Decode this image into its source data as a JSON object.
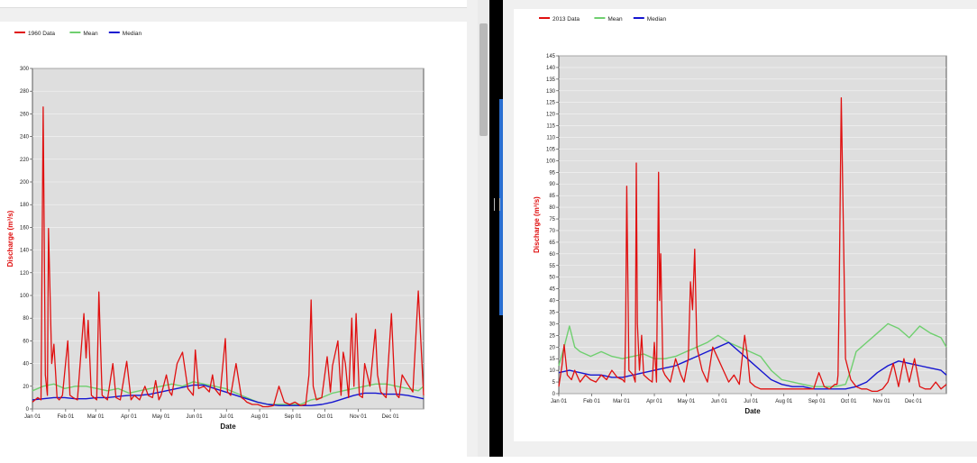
{
  "chart_data": [
    {
      "type": "line",
      "xlabel": "Date",
      "ylabel": "Discharge (m³/s)",
      "ylim": [
        0,
        300
      ],
      "yticks": [
        0,
        20,
        40,
        60,
        80,
        100,
        120,
        140,
        160,
        180,
        200,
        220,
        240,
        260,
        280,
        300
      ],
      "xtick_labels": [
        "Jan 01",
        "Feb 01",
        "Mar 01",
        "Apr 01",
        "May 01",
        "Jun 01",
        "Jul 01",
        "Aug 01",
        "Sep 01",
        "Oct 01",
        "Nov 01",
        "Dec 01"
      ],
      "x_unit": "day of year",
      "legend_position": "top-left",
      "grid": true,
      "series": [
        {
          "name": "1960 Data",
          "color": "#e01010",
          "x": [
            0,
            5,
            8,
            10,
            12,
            14,
            15,
            18,
            20,
            23,
            25,
            28,
            33,
            35,
            38,
            42,
            48,
            50,
            52,
            55,
            60,
            62,
            65,
            70,
            75,
            78,
            82,
            88,
            92,
            95,
            100,
            105,
            108,
            112,
            115,
            118,
            120,
            125,
            128,
            130,
            135,
            140,
            145,
            150,
            152,
            155,
            160,
            165,
            168,
            170,
            175,
            180,
            182,
            185,
            190,
            195,
            198,
            200,
            205,
            210,
            213,
            215,
            220,
            225,
            230,
            235,
            240,
            245,
            250,
            255,
            258,
            260,
            262,
            265,
            270,
            275,
            278,
            280,
            285,
            288,
            290,
            292,
            295,
            298,
            300,
            302,
            305,
            308,
            310,
            315,
            320,
            322,
            325,
            330,
            335,
            338,
            340,
            342,
            345,
            350,
            355,
            360,
            365
          ],
          "y": [
            6,
            10,
            8,
            266,
            30,
            12,
            159,
            40,
            57,
            10,
            8,
            12,
            60,
            12,
            10,
            8,
            84,
            45,
            78,
            12,
            8,
            103,
            12,
            8,
            40,
            10,
            8,
            42,
            8,
            12,
            8,
            20,
            12,
            10,
            25,
            8,
            12,
            30,
            15,
            12,
            40,
            50,
            18,
            12,
            52,
            18,
            20,
            15,
            30,
            18,
            12,
            62,
            15,
            12,
            40,
            10,
            8,
            6,
            4,
            4,
            3,
            2,
            2,
            3,
            20,
            6,
            4,
            6,
            3,
            4,
            30,
            96,
            20,
            8,
            10,
            46,
            15,
            38,
            60,
            12,
            50,
            40,
            10,
            80,
            20,
            84,
            12,
            10,
            40,
            20,
            70,
            30,
            15,
            10,
            84,
            20,
            12,
            10,
            30,
            22,
            15,
            104,
            12
          ]
        },
        {
          "name": "Mean",
          "color": "#6fcf6f",
          "x": [
            0,
            10,
            20,
            30,
            40,
            50,
            60,
            70,
            80,
            90,
            100,
            110,
            120,
            130,
            140,
            150,
            160,
            170,
            180,
            190,
            200,
            210,
            220,
            230,
            240,
            250,
            260,
            270,
            280,
            290,
            300,
            310,
            320,
            330,
            340,
            350,
            360,
            365
          ],
          "y": [
            16,
            20,
            22,
            18,
            20,
            20,
            18,
            16,
            18,
            14,
            16,
            18,
            20,
            22,
            20,
            24,
            22,
            20,
            18,
            14,
            10,
            6,
            4,
            4,
            4,
            4,
            8,
            10,
            14,
            16,
            18,
            20,
            22,
            22,
            20,
            18,
            16,
            20
          ]
        },
        {
          "name": "Median",
          "color": "#1515d0",
          "x": [
            0,
            10,
            20,
            30,
            40,
            50,
            60,
            70,
            80,
            90,
            100,
            110,
            120,
            130,
            140,
            150,
            160,
            170,
            180,
            190,
            200,
            210,
            220,
            230,
            240,
            250,
            260,
            270,
            280,
            290,
            300,
            310,
            320,
            330,
            340,
            350,
            360,
            365
          ],
          "y": [
            8,
            9,
            10,
            10,
            9,
            9,
            10,
            10,
            11,
            12,
            12,
            13,
            15,
            17,
            19,
            21,
            21,
            18,
            15,
            12,
            9,
            6,
            4,
            3,
            3,
            3,
            3,
            4,
            6,
            9,
            12,
            14,
            14,
            13,
            13,
            12,
            10,
            9
          ]
        }
      ]
    },
    {
      "type": "line",
      "xlabel": "Date",
      "ylabel": "Discharge (m³/s)",
      "ylim": [
        0,
        145
      ],
      "yticks": [
        0,
        5,
        10,
        15,
        20,
        25,
        30,
        35,
        40,
        45,
        50,
        55,
        60,
        65,
        70,
        75,
        80,
        85,
        90,
        95,
        100,
        105,
        110,
        115,
        120,
        125,
        130,
        135,
        140,
        145
      ],
      "xtick_labels": [
        "Jan 01",
        "Feb 01",
        "Mar 01",
        "Apr 01",
        "May 01",
        "Jun 01",
        "Jul 01",
        "Aug 01",
        "Sep 01",
        "Oct 01",
        "Nov 01",
        "Dec 01"
      ],
      "x_unit": "day of year",
      "legend_position": "top-left",
      "grid": true,
      "series": [
        {
          "name": "2013 Data",
          "color": "#e01010",
          "x": [
            0,
            3,
            5,
            8,
            12,
            15,
            18,
            20,
            25,
            30,
            35,
            40,
            45,
            50,
            55,
            60,
            62,
            63,
            64,
            66,
            70,
            72,
            73,
            74,
            76,
            78,
            80,
            85,
            88,
            90,
            92,
            94,
            95,
            96,
            98,
            100,
            105,
            110,
            115,
            118,
            120,
            122,
            124,
            126,
            128,
            130,
            135,
            140,
            145,
            150,
            155,
            160,
            165,
            170,
            175,
            178,
            180,
            185,
            190,
            195,
            200,
            205,
            210,
            220,
            230,
            240,
            245,
            250,
            255,
            260,
            262,
            263,
            264,
            266,
            270,
            275,
            280,
            285,
            290,
            295,
            300,
            305,
            310,
            315,
            320,
            325,
            330,
            335,
            340,
            345,
            350,
            355,
            360,
            365
          ],
          "y": [
            3,
            12,
            21,
            8,
            6,
            10,
            7,
            5,
            8,
            6,
            5,
            8,
            6,
            10,
            7,
            6,
            5,
            30,
            89,
            10,
            8,
            5,
            99,
            30,
            10,
            25,
            8,
            6,
            5,
            22,
            5,
            95,
            40,
            60,
            10,
            8,
            5,
            15,
            8,
            5,
            10,
            15,
            48,
            36,
            62,
            20,
            10,
            5,
            20,
            15,
            10,
            5,
            8,
            4,
            25,
            15,
            5,
            3,
            2,
            2,
            2,
            2,
            2,
            2,
            2,
            2,
            9,
            3,
            2,
            4,
            4,
            8,
            40,
            127,
            15,
            6,
            3,
            2,
            2,
            1,
            1,
            2,
            5,
            13,
            3,
            15,
            5,
            15,
            3,
            2,
            2,
            5,
            2,
            4
          ]
        },
        {
          "name": "Mean",
          "color": "#6fcf6f",
          "x": [
            0,
            5,
            10,
            15,
            20,
            25,
            30,
            40,
            50,
            60,
            70,
            80,
            90,
            100,
            110,
            120,
            130,
            140,
            150,
            160,
            170,
            180,
            190,
            200,
            210,
            220,
            230,
            240,
            250,
            260,
            270,
            275,
            280,
            290,
            300,
            310,
            320,
            330,
            340,
            350,
            360,
            365
          ],
          "y": [
            12,
            20,
            29,
            20,
            18,
            17,
            16,
            18,
            16,
            15,
            16,
            17,
            15,
            15,
            16,
            18,
            20,
            22,
            25,
            22,
            20,
            18,
            16,
            10,
            6,
            5,
            4,
            3,
            3,
            3,
            4,
            10,
            18,
            22,
            26,
            30,
            28,
            24,
            29,
            26,
            24,
            20
          ]
        },
        {
          "name": "Median",
          "color": "#1515d0",
          "x": [
            0,
            10,
            20,
            30,
            40,
            50,
            60,
            70,
            80,
            90,
            100,
            110,
            120,
            130,
            140,
            150,
            160,
            170,
            180,
            190,
            200,
            210,
            220,
            230,
            240,
            250,
            260,
            270,
            280,
            290,
            300,
            310,
            320,
            330,
            340,
            350,
            360,
            365
          ],
          "y": [
            9,
            10,
            9,
            8,
            8,
            7,
            7,
            8,
            9,
            10,
            11,
            12,
            14,
            16,
            18,
            20,
            22,
            18,
            14,
            10,
            6,
            4,
            3,
            3,
            2,
            2,
            2,
            2,
            3,
            5,
            9,
            12,
            14,
            13,
            12,
            11,
            10,
            8
          ]
        }
      ]
    }
  ]
}
